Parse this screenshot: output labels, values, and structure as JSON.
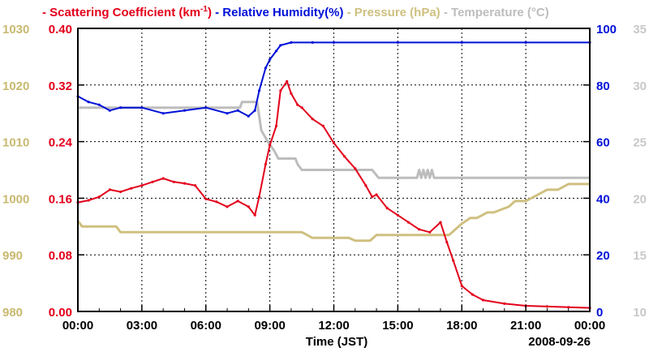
{
  "chart_data": {
    "type": "line",
    "title_parts": [
      {
        "text": "- Scattering Coefficient (km",
        "color": "#e3001b"
      },
      {
        "text": "-1",
        "color": "#e3001b",
        "sup": true
      },
      {
        "text": ")",
        "color": "#e3001b"
      },
      {
        "text": " - Relative Humidity(%)",
        "color": "#0010d8"
      },
      {
        "text": " - Pressure (hPa)",
        "color": "#cfc080"
      },
      {
        "text": " - Temperature (°C)",
        "color": "#bdbdbd"
      }
    ],
    "xlabel": "Time (JST)",
    "date_label": "2008-09-26",
    "x_ticks": [
      "00:00",
      "03:00",
      "06:00",
      "09:00",
      "12:00",
      "15:00",
      "18:00",
      "21:00",
      "00:00"
    ],
    "xlim": [
      0,
      24
    ],
    "axes": {
      "pressure": {
        "range": [
          980,
          1030
        ],
        "ticks": [
          "980",
          "990",
          "1000",
          "1010",
          "1020",
          "1030"
        ],
        "color": "#c9b970"
      },
      "scattering": {
        "range": [
          0,
          0.4
        ],
        "ticks": [
          "0.00",
          "0.08",
          "0.16",
          "0.24",
          "0.32",
          "0.40"
        ],
        "color": "#e3001b"
      },
      "humidity": {
        "range": [
          0,
          100
        ],
        "ticks": [
          "0",
          "20",
          "40",
          "60",
          "80",
          "100"
        ],
        "color": "#0010d8"
      },
      "temperature": {
        "range": [
          10,
          35
        ],
        "ticks": [
          "10",
          "15",
          "20",
          "25",
          "30",
          "35"
        ],
        "color": "#c8c8c8"
      }
    },
    "series": [
      {
        "name": "Scattering Coefficient",
        "axis": "scattering",
        "color": "#e3001b",
        "x": [
          0,
          0.5,
          1,
          1.5,
          2,
          2.5,
          3,
          3.5,
          4,
          4.5,
          5,
          5.5,
          6,
          6.5,
          7,
          7.5,
          8,
          8.3,
          8.5,
          8.8,
          9,
          9.3,
          9.5,
          9.8,
          10,
          10.3,
          10.5,
          11,
          11.5,
          12,
          12.5,
          13,
          13.5,
          13.8,
          14,
          14.5,
          15,
          15.5,
          16,
          16.5,
          17,
          17.3,
          17.6,
          18,
          18.5,
          19,
          20,
          21,
          22,
          23,
          24
        ],
        "y": [
          0.154,
          0.157,
          0.162,
          0.172,
          0.169,
          0.174,
          0.178,
          0.183,
          0.188,
          0.183,
          0.181,
          0.178,
          0.159,
          0.155,
          0.148,
          0.156,
          0.148,
          0.136,
          0.162,
          0.208,
          0.235,
          0.262,
          0.312,
          0.325,
          0.308,
          0.292,
          0.288,
          0.272,
          0.262,
          0.238,
          0.219,
          0.202,
          0.178,
          0.162,
          0.165,
          0.146,
          0.136,
          0.126,
          0.116,
          0.112,
          0.126,
          0.098,
          0.072,
          0.036,
          0.024,
          0.016,
          0.011,
          0.008,
          0.007,
          0.006,
          0.005
        ]
      },
      {
        "name": "Relative Humidity(%)",
        "axis": "humidity",
        "color": "#0010d8",
        "x": [
          0,
          0.5,
          1,
          1.5,
          2,
          3,
          4,
          5,
          6,
          7,
          7.5,
          8,
          8.3,
          8.5,
          8.8,
          9,
          9.3,
          9.5,
          10,
          11,
          12,
          15,
          18,
          21,
          24
        ],
        "y": [
          76,
          74,
          73,
          71,
          72,
          72,
          70,
          71,
          72,
          70,
          71,
          69,
          71,
          78,
          86,
          89,
          92,
          94,
          95,
          95,
          95,
          95,
          95,
          95,
          95
        ]
      },
      {
        "name": "Pressure (hPa)",
        "axis": "pressure",
        "color": "#cfc080",
        "x": [
          0,
          0.2,
          1.8,
          2,
          10.5,
          11,
          11.9,
          12,
          12.7,
          13,
          13.7,
          14,
          14.9,
          15,
          17.4,
          17.7,
          18,
          18.4,
          18.7,
          19.2,
          19.5,
          20.2,
          20.5,
          21,
          21.5,
          22,
          22.5,
          23,
          24
        ],
        "y": [
          996,
          995,
          995,
          994,
          994,
          993,
          993,
          993,
          993,
          992.5,
          992.5,
          993.5,
          993.5,
          993.5,
          993.5,
          994.5,
          995.5,
          996.5,
          996.5,
          997.5,
          997.5,
          998.5,
          999.5,
          999.5,
          1000.5,
          1001.5,
          1001.5,
          1002.5,
          1002.5
        ]
      },
      {
        "name": "Temperature (°C)",
        "axis": "temperature",
        "color": "#bdbdbd",
        "x": [
          0,
          7.6,
          7.7,
          8.4,
          8.6,
          8.9,
          9.2,
          9.4,
          9.6,
          10.2,
          10.3,
          10.5,
          10.7,
          13.8,
          14.1,
          15.9,
          16,
          16.1,
          16.2,
          16.3,
          16.4,
          16.5,
          16.6,
          16.7,
          16.8,
          24
        ],
        "y": [
          28,
          28,
          28.5,
          28.5,
          26,
          25,
          24.2,
          23.5,
          23.5,
          23.5,
          23,
          22.5,
          22.5,
          22.5,
          21.8,
          21.8,
          22.5,
          21.8,
          22.5,
          21.8,
          22.5,
          21.8,
          22.5,
          21.8,
          21.8,
          21.8
        ]
      }
    ]
  }
}
